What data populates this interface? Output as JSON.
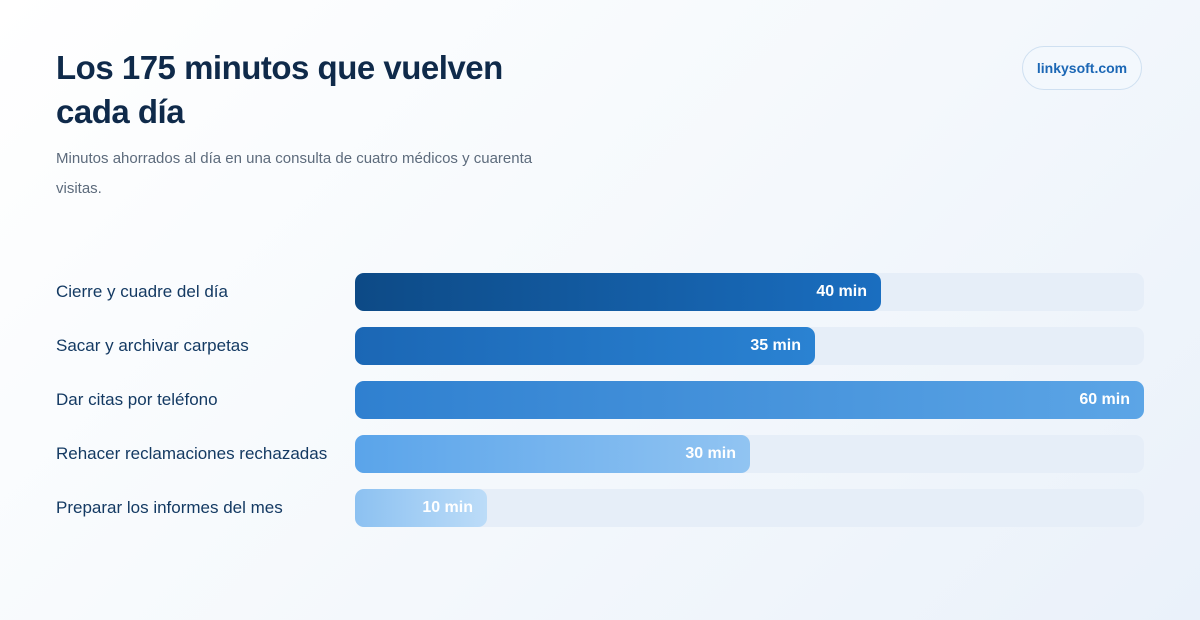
{
  "header": {
    "title": "Los 175 minutos que vuelven cada día",
    "subtitle": "Minutos ahorrados al día en una consulta de cuatro médicos y cuarenta visitas.",
    "brand": "linkysoft.com"
  },
  "chart_data": {
    "type": "bar",
    "orientation": "horizontal",
    "categories": [
      "Cierre y cuadre del día",
      "Sacar y archivar carpetas",
      "Dar citas por teléfono",
      "Rehacer reclamaciones rechazadas",
      "Preparar los informes del mes"
    ],
    "values": [
      40,
      35,
      60,
      30,
      10
    ],
    "value_labels": [
      "40 min",
      "35 min",
      "60 min",
      "30 min",
      "10 min"
    ],
    "xlim": [
      0,
      60
    ],
    "grid": false,
    "bar_colors": [
      [
        "#0d4a86",
        "#1a6ec0"
      ],
      [
        "#1b67b5",
        "#2a82d2"
      ],
      [
        "#2f80d0",
        "#5ca5e6"
      ],
      [
        "#5aa4ea",
        "#91c4f2"
      ],
      [
        "#8cc1f1",
        "#bcdcf8"
      ]
    ]
  }
}
